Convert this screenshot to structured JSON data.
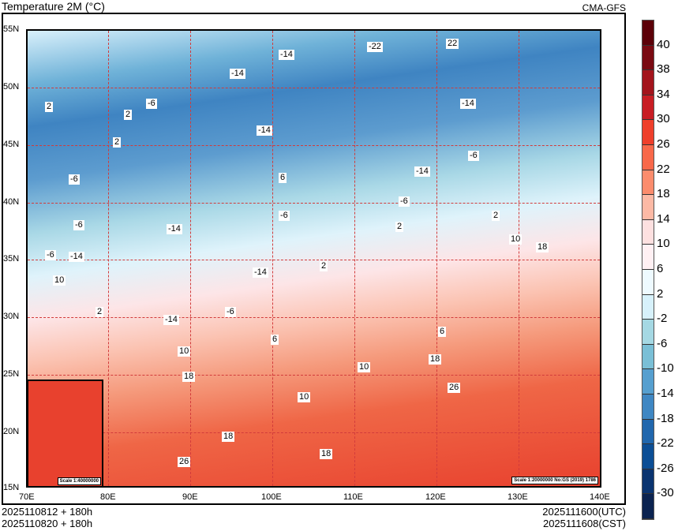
{
  "header": {
    "title": "Temperature  2M (°C)",
    "model": "CMA-GFS"
  },
  "map": {
    "lat_labels": [
      "55N",
      "50N",
      "45N",
      "40N",
      "35N",
      "30N",
      "25N",
      "20N",
      "15N"
    ],
    "lon_labels": [
      "70E",
      "80E",
      "90E",
      "100E",
      "110E",
      "120E",
      "130E",
      "140E"
    ],
    "contour_labels": [
      "2",
      "2",
      "-6",
      "2",
      "-6",
      "-6",
      "-6",
      "-14",
      "-14",
      "-14",
      "-14",
      "-22",
      "22",
      "-14",
      "-6",
      "-14",
      "6",
      "-6",
      "-14",
      "-6",
      "2",
      "-14",
      "-14",
      "-6",
      "6",
      "2",
      "10",
      "2",
      "10",
      "18",
      "26",
      "18",
      "10",
      "18",
      "10",
      "18",
      "26",
      "10",
      "18",
      "2",
      "6"
    ],
    "scale_main": "Scale 1:20000000 No:GS (2019) 1786",
    "scale_inset": "Scale 1:40000000"
  },
  "colorbar": {
    "labels": [
      "40",
      "38",
      "34",
      "30",
      "26",
      "22",
      "18",
      "14",
      "10",
      "6",
      "2",
      "-2",
      "-6",
      "-10",
      "-14",
      "-18",
      "-22",
      "-26",
      "-30"
    ],
    "colors": [
      "#5c0008",
      "#7a0a12",
      "#a3141c",
      "#c81d24",
      "#ee3f2b",
      "#f8684a",
      "#fb8c6d",
      "#fcb9a5",
      "#fde0e0",
      "#fff0f3",
      "#eefaff",
      "#d7f1fb",
      "#a5d8e3",
      "#7abfd6",
      "#569fcf",
      "#3f87c3",
      "#2167ad",
      "#0c4e95",
      "#0a3470",
      "#0b2350"
    ]
  },
  "footer": {
    "init_utc": "2025110812 + 180h",
    "init_cst": "2025110820 + 180h",
    "valid_utc": "2025111600(UTC)",
    "valid_cst": "2025111608(CST)"
  }
}
